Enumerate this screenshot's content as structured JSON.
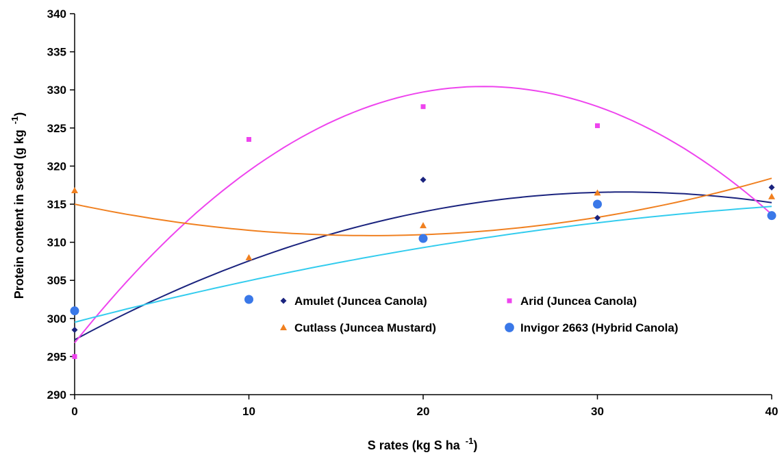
{
  "chart_data": {
    "type": "scatter",
    "xlabel_main": "S rates (kg S ha",
    "xlabel_sup": "-1",
    "xlabel_close": ")",
    "ylabel_main": "Protein content in seed (g kg",
    "ylabel_sup": "-1",
    "ylabel_close": ")",
    "xlim": [
      0,
      40
    ],
    "ylim": [
      290,
      340
    ],
    "x_ticks": [
      0,
      10,
      20,
      30,
      40
    ],
    "y_ticks": [
      290,
      295,
      300,
      305,
      310,
      315,
      320,
      325,
      330,
      335,
      340
    ],
    "grid": false,
    "legend_position": "center",
    "trendline": "polynomial order 2",
    "series": [
      {
        "name": "Amulet (Juncea Canola)",
        "marker": "diamond",
        "color": "#1a237e",
        "line_color": "#1a237e",
        "x": [
          0,
          20,
          30,
          40
        ],
        "y": [
          298.5,
          318.2,
          313.2,
          317.2
        ],
        "trend": [
          297.2,
          1.23,
          -0.0195
        ]
      },
      {
        "name": "Arid (Juncea Canola)",
        "marker": "square",
        "color": "#ee44ee",
        "line_color": "#ee44ee",
        "x": [
          0,
          10,
          20,
          30
        ],
        "y": [
          295.0,
          323.5,
          327.8,
          325.3
        ],
        "trend": [
          296.8,
          2.87,
          -0.0612
        ]
      },
      {
        "name": "Cutlass (Juncea Mustard)",
        "marker": "triangle",
        "color": "#f08020",
        "line_color": "#f08020",
        "x": [
          0,
          10,
          20,
          30,
          40
        ],
        "y": [
          316.8,
          308.0,
          312.2,
          316.5,
          316.0
        ],
        "trend": [
          315.0,
          -0.485,
          0.01425
        ]
      },
      {
        "name": "Invigor 2663 (Hybrid Canola)",
        "marker": "circle",
        "color": "#3a78e8",
        "line_color": "#33ccee",
        "x": [
          0,
          10,
          20,
          30,
          40
        ],
        "y": [
          301.0,
          302.5,
          310.5,
          315.0,
          313.5
        ],
        "trend": [
          299.5,
          0.6,
          -0.0055
        ]
      }
    ]
  }
}
